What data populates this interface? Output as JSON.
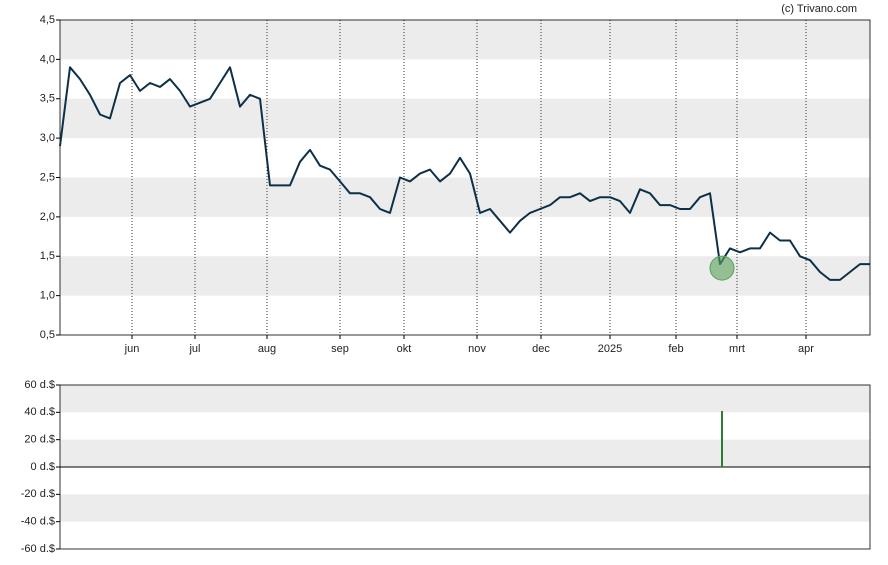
{
  "source": "(c) Trivano.com",
  "chart_data": [
    {
      "type": "line",
      "series": [
        {
          "color": "#0d3049",
          "values": [
            2.9,
            3.9,
            3.75,
            3.55,
            3.3,
            3.25,
            3.7,
            3.8,
            3.6,
            3.7,
            3.65,
            3.75,
            3.6,
            3.4,
            3.45,
            3.5,
            3.7,
            3.9,
            3.4,
            3.55,
            3.5,
            2.4,
            2.4,
            2.4,
            2.7,
            2.85,
            2.65,
            2.6,
            2.45,
            2.3,
            2.3,
            2.25,
            2.1,
            2.05,
            2.5,
            2.45,
            2.55,
            2.6,
            2.45,
            2.55,
            2.75,
            2.55,
            2.05,
            2.1,
            1.95,
            1.8,
            1.95,
            2.05,
            2.1,
            2.15,
            2.25,
            2.25,
            2.3,
            2.2,
            2.25,
            2.25,
            2.2,
            2.05,
            2.35,
            2.3,
            2.15,
            2.15,
            2.1,
            2.1,
            2.25,
            2.3,
            1.4,
            1.6,
            1.55,
            1.6,
            1.6,
            1.8,
            1.7,
            1.7,
            1.5,
            1.45,
            1.3,
            1.2,
            1.2,
            1.3,
            1.4,
            1.4
          ]
        }
      ],
      "marker": {
        "x": 66.2,
        "y": 1.35,
        "color": "#5aa05a"
      },
      "xlim": [
        0,
        81
      ],
      "xticks": [
        {
          "value": 7.2,
          "label": "jun"
        },
        {
          "value": 13.5,
          "label": "jul"
        },
        {
          "value": 20.7,
          "label": "aug"
        },
        {
          "value": 28,
          "label": "sep"
        },
        {
          "value": 34.4,
          "label": "okt"
        },
        {
          "value": 41.7,
          "label": "nov"
        },
        {
          "value": 48.1,
          "label": "dec"
        },
        {
          "value": 55,
          "label": "2025"
        },
        {
          "value": 61.6,
          "label": "feb"
        },
        {
          "value": 67.7,
          "label": "mrt"
        },
        {
          "value": 74.6,
          "label": "apr"
        }
      ],
      "ylim": [
        0.5,
        4.5
      ],
      "yticks": [
        {
          "value": 0.5,
          "label": "0,5"
        },
        {
          "value": 1,
          "label": "1,0"
        },
        {
          "value": 1.5,
          "label": "1,5"
        },
        {
          "value": 2,
          "label": "2,0"
        },
        {
          "value": 2.5,
          "label": "2,5"
        },
        {
          "value": 3,
          "label": "3,0"
        },
        {
          "value": 3.5,
          "label": "3,5"
        },
        {
          "value": 4,
          "label": "4,0"
        },
        {
          "value": 4.5,
          "label": "4,5"
        }
      ],
      "grid": true
    },
    {
      "type": "bar",
      "x": [
        66.2
      ],
      "values": [
        41
      ],
      "color": "#2e7d32",
      "xlim": [
        0,
        81
      ],
      "ylim": [
        -60,
        60
      ],
      "yticks": [
        {
          "value": -60,
          "label": "-60 d.$"
        },
        {
          "value": -40,
          "label": "-40 d.$"
        },
        {
          "value": -20,
          "label": "-20 d.$"
        },
        {
          "value": 0,
          "label": "0 d.$"
        },
        {
          "value": 20,
          "label": "20 d.$"
        },
        {
          "value": 40,
          "label": "40 d.$"
        },
        {
          "value": 60,
          "label": "60 d.$"
        }
      ],
      "grid": true
    }
  ]
}
